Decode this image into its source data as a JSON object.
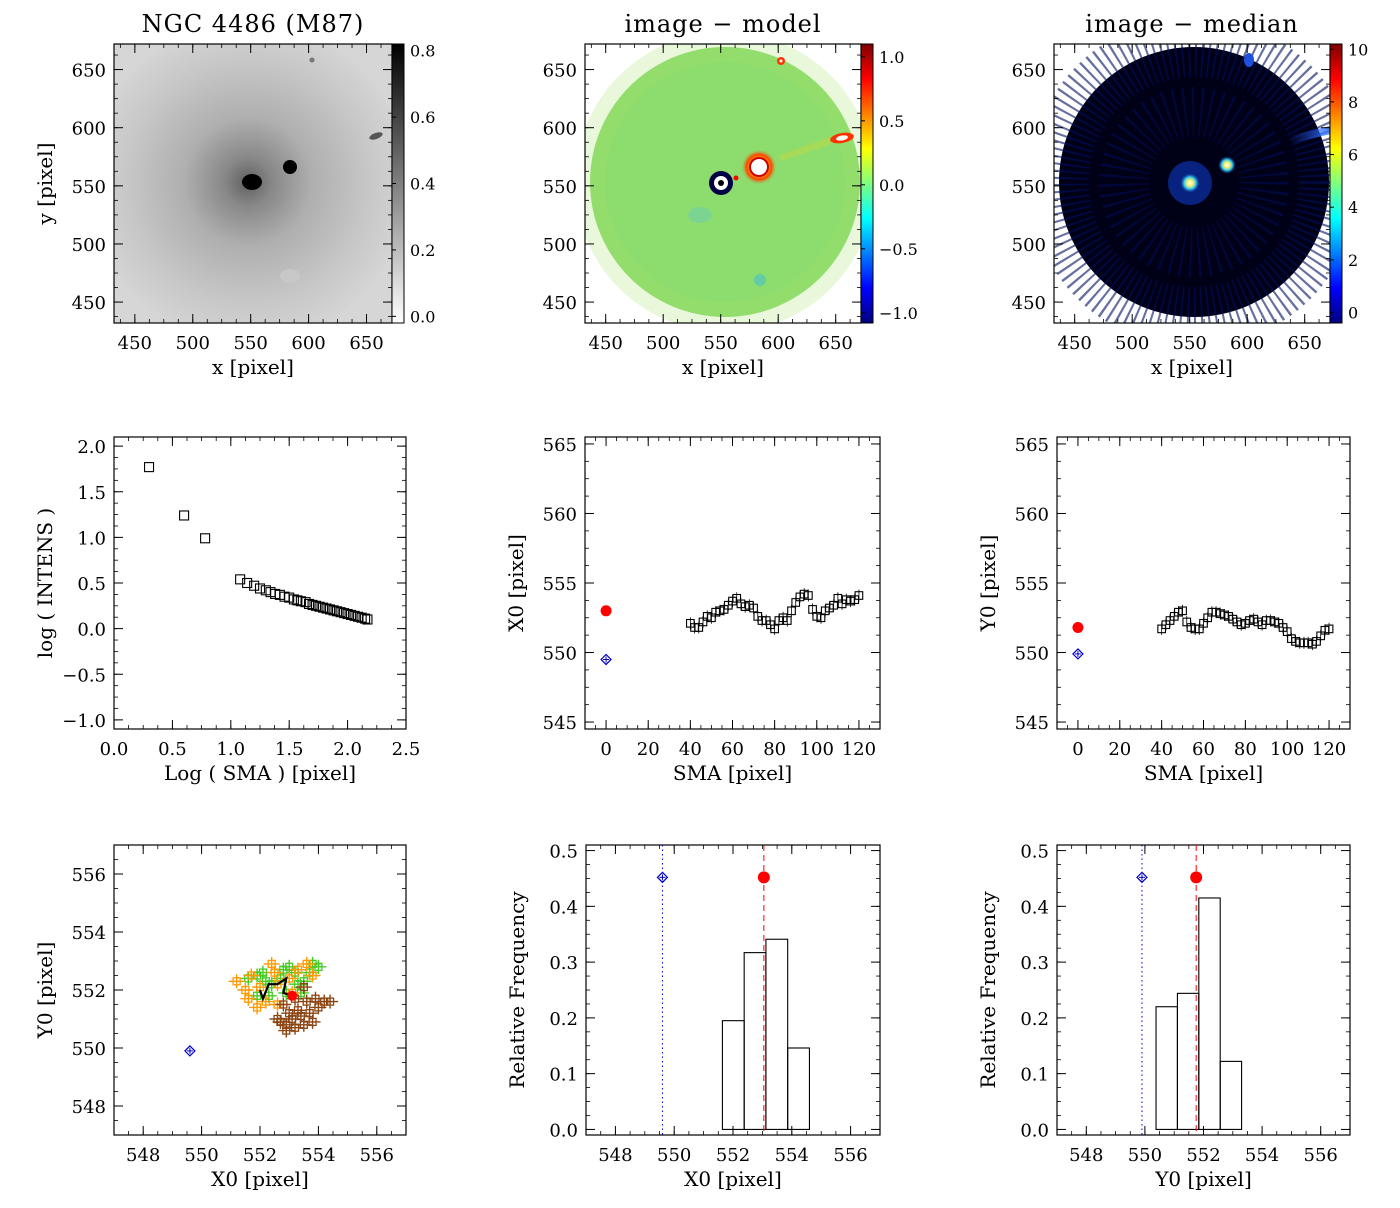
{
  "chart_data": [
    {
      "id": "img_m87",
      "type": "heatmap",
      "title": "NGC 4486 (M87)",
      "xlabel": "x [pixel]",
      "ylabel": "y [pixel]",
      "xlim": [
        432,
        672
      ],
      "ylim": [
        432,
        672
      ],
      "xticks": [
        450,
        500,
        550,
        600,
        650
      ],
      "yticks": [
        450,
        500,
        550,
        600,
        650
      ],
      "colormap": "gray_reversed",
      "colorbar": {
        "range": [
          -0.02,
          0.82
        ],
        "ticks": [
          "0.0",
          "0.2",
          "0.4",
          "0.6",
          "0.8"
        ],
        "tick_values": [
          0,
          0.2,
          0.4,
          0.6,
          0.8
        ]
      },
      "features": [
        {
          "name": "galaxy core",
          "x": 551,
          "y": 548,
          "value": 0.8
        },
        {
          "name": "companion",
          "x": 581,
          "y": 563,
          "value": 0.8
        },
        {
          "name": "jet knot",
          "x": 652,
          "y": 586,
          "value": 0.45
        },
        {
          "name": "faint source",
          "x": 600,
          "y": 656,
          "value": 0.35
        }
      ]
    },
    {
      "id": "img_resid_model",
      "type": "heatmap",
      "title": "image − model",
      "xlabel": "x [pixel]",
      "ylabel": "",
      "xlim": [
        432,
        672
      ],
      "ylim": [
        432,
        672
      ],
      "xticks": [
        450,
        500,
        550,
        600,
        650
      ],
      "yticks": [
        450,
        500,
        550,
        600,
        650
      ],
      "colormap": "jet",
      "colorbar": {
        "range": [
          -1.08,
          1.1
        ],
        "ticks": [
          "1.0",
          "0.5",
          "0.0",
          "−0.5",
          "−1.0"
        ],
        "tick_values": [
          1.0,
          0.5,
          0.0,
          -0.5,
          -1.0
        ]
      },
      "mask_radius": 116,
      "mask_center": [
        552,
        552
      ]
    },
    {
      "id": "img_resid_median",
      "type": "heatmap",
      "title": "image − median",
      "xlabel": "x [pixel]",
      "ylabel": "",
      "xlim": [
        432,
        672
      ],
      "ylim": [
        432,
        672
      ],
      "xticks": [
        450,
        500,
        550,
        600,
        650
      ],
      "yticks": [
        450,
        500,
        550,
        600,
        650
      ],
      "colormap": "jet",
      "colorbar": {
        "range": [
          -0.4,
          10.2
        ],
        "ticks": [
          "10",
          "8",
          "6",
          "4",
          "2",
          "0"
        ],
        "tick_values": [
          10,
          8,
          6,
          4,
          2,
          0
        ]
      },
      "mask_radius": 116,
      "mask_center": [
        552,
        552
      ]
    },
    {
      "id": "profile",
      "type": "scatter",
      "title": "",
      "xlabel": "Log ( SMA ) [pixel]",
      "ylabel": "log ( INTENS )",
      "xlim": [
        0,
        2.5
      ],
      "ylim": [
        -1.1,
        2.1
      ],
      "xticks": [
        0.0,
        0.5,
        1.0,
        1.5,
        2.0,
        2.5
      ],
      "xtick_labels": [
        "0.0",
        "0.5",
        "1.0",
        "1.5",
        "2.0",
        "2.5"
      ],
      "yticks": [
        -1.0,
        -0.5,
        0.0,
        0.5,
        1.0,
        1.5,
        2.0
      ],
      "ytick_labels": [
        "−1.0",
        "−0.5",
        "0.0",
        "0.5",
        "1.0",
        "1.5",
        "2.0"
      ],
      "x": [
        0.3,
        0.6,
        0.78,
        1.08,
        1.14,
        1.2,
        1.25,
        1.3,
        1.34,
        1.38,
        1.42,
        1.46,
        1.5,
        1.54,
        1.57,
        1.6,
        1.64,
        1.67,
        1.7,
        1.73,
        1.76,
        1.79,
        1.82,
        1.85,
        1.88,
        1.91,
        1.94,
        1.97,
        2.0,
        2.03,
        2.06,
        2.09,
        2.12,
        2.15,
        2.17
      ],
      "y": [
        1.77,
        1.24,
        0.99,
        0.54,
        0.5,
        0.47,
        0.44,
        0.42,
        0.4,
        0.38,
        0.37,
        0.35,
        0.34,
        0.32,
        0.31,
        0.3,
        0.29,
        0.27,
        0.26,
        0.25,
        0.24,
        0.23,
        0.22,
        0.21,
        0.2,
        0.19,
        0.18,
        0.17,
        0.16,
        0.15,
        0.14,
        0.13,
        0.12,
        0.11,
        0.1
      ],
      "marker": "open-square"
    },
    {
      "id": "x0_vs_sma",
      "type": "scatter",
      "title": "",
      "xlabel": "SMA [pixel]",
      "ylabel": "X0 [pixel]",
      "xlim": [
        -10,
        130
      ],
      "ylim": [
        544.5,
        565.5
      ],
      "xticks": [
        0,
        20,
        40,
        60,
        80,
        100,
        120
      ],
      "yticks": [
        545,
        550,
        555,
        560,
        565
      ],
      "x": [
        40,
        42,
        44,
        46,
        48,
        50,
        52,
        54,
        56,
        58,
        60,
        62,
        64,
        66,
        68,
        70,
        72,
        74,
        76,
        78,
        80,
        82,
        84,
        86,
        88,
        90,
        92,
        94,
        96,
        98,
        100,
        102,
        104,
        106,
        108,
        110,
        112,
        114,
        116,
        118,
        120
      ],
      "y": [
        552.1,
        551.8,
        551.8,
        552.2,
        552.6,
        552.5,
        552.9,
        553.0,
        553.1,
        553.4,
        553.7,
        553.9,
        553.5,
        553.3,
        553.4,
        553.2,
        552.6,
        552.3,
        552.3,
        552.0,
        551.7,
        552.3,
        552.5,
        552.3,
        553.0,
        553.6,
        554.0,
        554.2,
        554.1,
        553.1,
        552.6,
        552.5,
        553.0,
        553.2,
        553.4,
        553.9,
        553.5,
        553.8,
        553.7,
        553.8,
        554.1
      ],
      "marker": "open-square",
      "reference": {
        "x": 0,
        "y": 553.0,
        "color": "#ff0000",
        "marker": "filled-circle"
      },
      "initial": {
        "x": 0,
        "y": 549.5,
        "color": "#0000cc",
        "marker": "diamond-plus"
      }
    },
    {
      "id": "y0_vs_sma",
      "type": "scatter",
      "title": "",
      "xlabel": "SMA [pixel]",
      "ylabel": "Y0 [pixel]",
      "xlim": [
        -10,
        130
      ],
      "ylim": [
        544.5,
        565.5
      ],
      "xticks": [
        0,
        20,
        40,
        60,
        80,
        100,
        120
      ],
      "yticks": [
        545,
        550,
        555,
        560,
        565
      ],
      "x": [
        40,
        42,
        44,
        46,
        48,
        50,
        52,
        54,
        56,
        58,
        60,
        62,
        64,
        66,
        68,
        70,
        72,
        74,
        76,
        78,
        80,
        82,
        84,
        86,
        88,
        90,
        92,
        94,
        96,
        98,
        100,
        102,
        104,
        106,
        108,
        110,
        112,
        114,
        116,
        118,
        120
      ],
      "y": [
        551.7,
        552.0,
        552.3,
        552.6,
        552.9,
        553.0,
        552.2,
        551.8,
        551.7,
        551.7,
        552.1,
        552.5,
        552.9,
        552.9,
        552.8,
        552.7,
        552.6,
        552.4,
        552.2,
        552.0,
        552.1,
        552.3,
        552.4,
        552.2,
        552.0,
        552.3,
        552.3,
        552.2,
        552.1,
        551.8,
        551.5,
        551.0,
        550.8,
        550.7,
        550.7,
        550.7,
        550.6,
        550.8,
        551.2,
        551.6,
        551.7
      ],
      "marker": "open-square",
      "reference": {
        "x": 0,
        "y": 551.8,
        "color": "#ff0000",
        "marker": "filled-circle"
      },
      "initial": {
        "x": 0,
        "y": 549.9,
        "color": "#0000cc",
        "marker": "diamond-plus"
      }
    },
    {
      "id": "center_track",
      "type": "scatter",
      "title": "",
      "xlabel": "X0 [pixel]",
      "ylabel": "Y0 [pixel]",
      "xlim": [
        547,
        557
      ],
      "ylim": [
        547,
        557
      ],
      "xticks": [
        548,
        550,
        552,
        554,
        556
      ],
      "yticks": [
        548,
        550,
        552,
        554,
        556
      ],
      "groups": [
        {
          "color": "#44cc22",
          "points": [
            [
              551.6,
              552.4
            ],
            [
              551.9,
              552.5
            ],
            [
              552.1,
              552.6
            ],
            [
              552.2,
              552.3
            ],
            [
              552.4,
              552.2
            ],
            [
              552.7,
              552.4
            ],
            [
              552.8,
              552.7
            ],
            [
              553.0,
              552.8
            ],
            [
              553.2,
              552.6
            ],
            [
              553.3,
              552.2
            ],
            [
              553.5,
              552.3
            ],
            [
              553.7,
              552.6
            ],
            [
              553.8,
              552.9
            ],
            [
              554.0,
              552.8
            ],
            [
              552.3,
              551.8
            ],
            [
              552.9,
              551.9
            ],
            [
              553.4,
              551.9
            ],
            [
              551.9,
              551.8
            ]
          ]
        },
        {
          "color": "#ff9900",
          "points": [
            [
              551.2,
              552.3
            ],
            [
              551.5,
              552.0
            ],
            [
              551.7,
              552.5
            ],
            [
              552.0,
              552.1
            ],
            [
              552.5,
              552.6
            ],
            [
              552.6,
              552.2
            ],
            [
              553.0,
              552.4
            ],
            [
              553.3,
              552.7
            ],
            [
              553.6,
              552.9
            ],
            [
              552.2,
              551.6
            ],
            [
              551.9,
              551.4
            ],
            [
              552.6,
              551.5
            ],
            [
              553.1,
              551.9
            ],
            [
              553.8,
              552.5
            ],
            [
              552.4,
              552.9
            ],
            [
              551.6,
              551.7
            ]
          ]
        },
        {
          "color": "#8b4513",
          "points": [
            [
              552.6,
              551.0
            ],
            [
              552.9,
              550.8
            ],
            [
              553.2,
              550.7
            ],
            [
              553.5,
              550.8
            ],
            [
              553.7,
              551.2
            ],
            [
              554.0,
              551.4
            ],
            [
              553.9,
              551.7
            ],
            [
              553.6,
              551.6
            ],
            [
              553.3,
              551.3
            ],
            [
              553.0,
              551.2
            ],
            [
              552.8,
              551.5
            ],
            [
              553.1,
              551.0
            ],
            [
              553.8,
              550.9
            ],
            [
              554.2,
              551.6
            ],
            [
              554.4,
              551.6
            ],
            [
              553.5,
              552.1
            ],
            [
              553.2,
              551.7
            ],
            [
              552.9,
              550.6
            ],
            [
              553.4,
              551.1
            ],
            [
              552.7,
              550.9
            ]
          ]
        }
      ],
      "track": [
        [
          552.0,
          552.0
        ],
        [
          552.1,
          551.7
        ],
        [
          552.3,
          552.2
        ],
        [
          552.6,
          552.2
        ],
        [
          552.9,
          552.4
        ],
        [
          552.8,
          551.9
        ],
        [
          553.1,
          551.8
        ]
      ],
      "reference": {
        "x": 553.1,
        "y": 551.8,
        "color": "#ff0000",
        "marker": "filled-circle"
      },
      "initial": {
        "x": 549.6,
        "y": 549.9,
        "color": "#0000cc",
        "marker": "diamond-plus"
      }
    },
    {
      "id": "hist_x0",
      "type": "bar",
      "title": "",
      "xlabel": "X0 [pixel]",
      "ylabel": "Relative Frequency",
      "xlim": [
        547,
        557
      ],
      "ylim": [
        -0.01,
        0.51
      ],
      "xticks": [
        548,
        550,
        552,
        554,
        556
      ],
      "yticks": [
        0.0,
        0.1,
        0.2,
        0.3,
        0.4,
        0.5
      ],
      "ytick_labels": [
        "0.0",
        "0.1",
        "0.2",
        "0.3",
        "0.4",
        "0.5"
      ],
      "bin_edges": [
        551.64,
        552.38,
        553.12,
        553.86,
        554.6
      ],
      "values": [
        0.195,
        0.317,
        0.341,
        0.146
      ],
      "reference": {
        "x": 553.05,
        "y": 0.452,
        "color": "#ff0000"
      },
      "initial": {
        "x": 549.6,
        "y": 0.452,
        "color": "#0000cc"
      }
    },
    {
      "id": "hist_y0",
      "type": "bar",
      "title": "",
      "xlabel": "Y0 [pixel]",
      "ylabel": "Relative Frequency",
      "xlim": [
        547,
        557
      ],
      "ylim": [
        -0.01,
        0.51
      ],
      "xticks": [
        548,
        550,
        552,
        554,
        556
      ],
      "yticks": [
        0.0,
        0.1,
        0.2,
        0.3,
        0.4,
        0.5
      ],
      "ytick_labels": [
        "0.0",
        "0.1",
        "0.2",
        "0.3",
        "0.4",
        "0.5"
      ],
      "bin_edges": [
        550.38,
        551.11,
        551.84,
        552.57,
        553.3
      ],
      "values": [
        0.22,
        0.244,
        0.415,
        0.122
      ],
      "reference": {
        "x": 551.75,
        "y": 0.452,
        "color": "#ff0000"
      },
      "initial": {
        "x": 549.9,
        "y": 0.452,
        "color": "#0000cc"
      }
    }
  ]
}
